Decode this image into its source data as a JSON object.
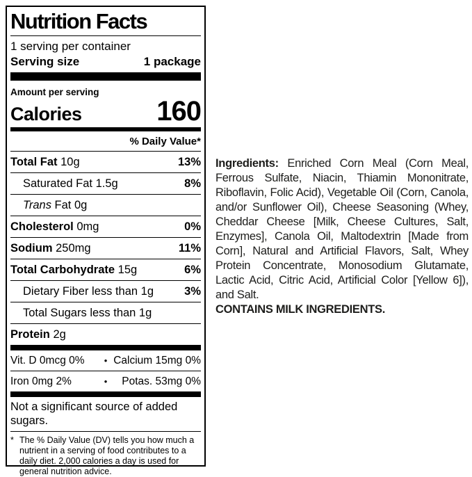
{
  "label": {
    "title": "Nutrition Facts",
    "servings_per_container": "1 serving per container",
    "serving_size_label": "Serving size",
    "serving_size_value": "1 package",
    "amount_per_serving": "Amount per serving",
    "calories_label": "Calories",
    "calories_value": "160",
    "daily_value_header": "% Daily Value*",
    "rows": [
      {
        "name": "Total Fat",
        "amount": "10g",
        "dv": "13%"
      },
      {
        "name": "Saturated Fat",
        "amount": "1.5g",
        "dv": "8%"
      },
      {
        "name_italic": "Trans",
        "name": "Fat",
        "amount": "0g",
        "dv": ""
      },
      {
        "name": "Cholesterol",
        "amount": "0mg",
        "dv": "0%"
      },
      {
        "name": "Sodium",
        "amount": "250mg",
        "dv": "11%"
      },
      {
        "name": "Total Carbohydrate",
        "amount": "15g",
        "dv": "6%"
      },
      {
        "name": "Dietary Fiber",
        "amount": "less than 1g",
        "dv": "3%"
      },
      {
        "name": "Total Sugars",
        "amount": "less than 1g",
        "dv": ""
      },
      {
        "name": "Protein",
        "amount": "2g",
        "dv": ""
      }
    ],
    "bullet": "•",
    "micronutrients": [
      {
        "left": "Vit. D 0mcg 0%",
        "right": "Calcium 15mg 0%"
      },
      {
        "left": "Iron 0mg 2%",
        "right": "Potas. 53mg 0%"
      }
    ],
    "not_significant": "Not a significant source of added sugars.",
    "footnote_marker": "*",
    "footnote": "The % Daily Value (DV) tells you how much a nutrient in a serving of food contributes to a daily diet. 2,000 calories a day is used for general nutrition advice."
  },
  "ingredients": {
    "heading": "Ingredients:",
    "text": "Enriched Corn Meal (Corn Meal, Ferrous Sulfate, Niacin, Thiamin Mononitrate, Riboflavin, Folic Acid), Vegetable Oil (Corn, Canola, and/or Sunflower Oil), Cheese Seasoning (Whey, Cheddar Cheese [Milk, Cheese Cultures, Salt, Enzymes], Canola Oil, Maltodextrin [Made from Corn], Natural and Artificial Flavors, Salt, Whey Protein Concentrate, Monosodium Glutamate, Lactic Acid, Citric Acid, Artificial Color [Yellow 6]), and Salt.",
    "allergen": "CONTAINS MILK INGREDIENTS."
  }
}
